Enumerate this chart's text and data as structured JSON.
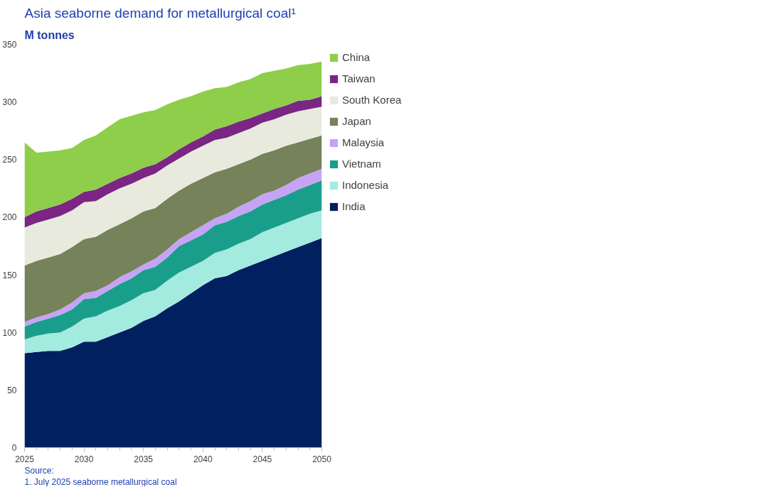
{
  "chart_data": {
    "type": "area",
    "stacked": true,
    "title": "Asia seaborne demand for metallurgical coal¹",
    "subtitle": "M tonnes",
    "x": [
      2025,
      2026,
      2027,
      2028,
      2029,
      2030,
      2031,
      2032,
      2033,
      2034,
      2035,
      2036,
      2037,
      2038,
      2039,
      2040,
      2041,
      2042,
      2043,
      2044,
      2045,
      2046,
      2047,
      2048,
      2049,
      2050
    ],
    "xlim": [
      2025,
      2050
    ],
    "xticks": [
      2025,
      2030,
      2035,
      2040,
      2045,
      2050
    ],
    "ylim": [
      0,
      350
    ],
    "yticks": [
      0,
      50,
      100,
      150,
      200,
      250,
      300,
      350
    ],
    "grid": false,
    "legend": "right",
    "series": [
      {
        "name": "India",
        "color": "#002060",
        "values": [
          82,
          83,
          84,
          84,
          87,
          92,
          92,
          96,
          100,
          104,
          110,
          114,
          121,
          127,
          134,
          141,
          147,
          149,
          154,
          158,
          162,
          166,
          170,
          174,
          178,
          182
        ]
      },
      {
        "name": "Indonesia",
        "color": "#a3eadf",
        "values": [
          12,
          14,
          15,
          16,
          18,
          20,
          22,
          23,
          23,
          24,
          24,
          23,
          24,
          25,
          23,
          21,
          22,
          23,
          23,
          23,
          25,
          25,
          25,
          25,
          25,
          24
        ]
      },
      {
        "name": "Vietnam",
        "color": "#1a9e8c",
        "values": [
          11,
          12,
          13,
          15,
          15,
          17,
          16,
          17,
          19,
          19,
          20,
          20,
          20,
          23,
          23,
          23,
          24,
          24,
          24,
          24,
          24,
          24,
          24,
          25,
          25,
          26
        ]
      },
      {
        "name": "Malaysia",
        "color": "#c5a3f5",
        "values": [
          4,
          4,
          4,
          5,
          6,
          5,
          6,
          5,
          6,
          6,
          5,
          7,
          7,
          6,
          7,
          8,
          6,
          7,
          8,
          9,
          9,
          8,
          9,
          10,
          10,
          10
        ]
      },
      {
        "name": "Japan",
        "color": "#76825a",
        "values": [
          49,
          49,
          49,
          48,
          48,
          47,
          47,
          48,
          46,
          46,
          46,
          44,
          44,
          42,
          42,
          41,
          40,
          39,
          37,
          36,
          35,
          35,
          34,
          31,
          30,
          29
        ]
      },
      {
        "name": "South Korea",
        "color": "#e8eadd",
        "values": [
          33,
          33,
          33,
          33,
          32,
          32,
          31,
          31,
          31,
          30,
          29,
          30,
          29,
          28,
          28,
          28,
          28,
          27,
          27,
          27,
          27,
          27,
          27,
          27,
          26,
          25
        ]
      },
      {
        "name": "Taiwan",
        "color": "#7b2585",
        "values": [
          9,
          10,
          10,
          10,
          10,
          9,
          10,
          9,
          9,
          9,
          9,
          8,
          7,
          8,
          8,
          8,
          9,
          10,
          10,
          9,
          8,
          9,
          8,
          9,
          8,
          9
        ]
      },
      {
        "name": "China",
        "color": "#8ece4a",
        "values": [
          65,
          51,
          49,
          47,
          44,
          45,
          47,
          49,
          51,
          50,
          48,
          47,
          46,
          43,
          40,
          39,
          36,
          34,
          34,
          34,
          35,
          33,
          32,
          31,
          31,
          30
        ]
      }
    ],
    "annotations": [
      "Source:",
      "1. July 2025 seaborne metallurgical coal"
    ]
  }
}
